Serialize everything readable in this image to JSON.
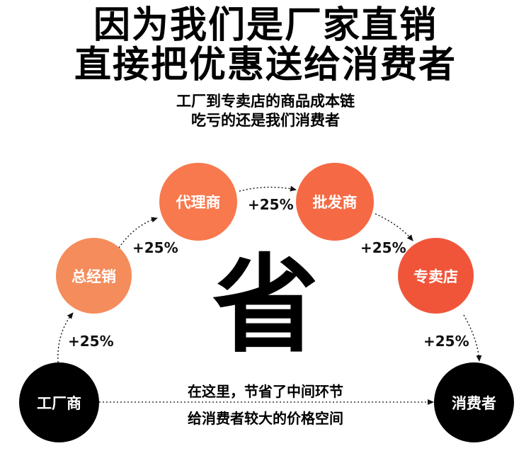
{
  "title": {
    "line1": "因为我们是厂家直销",
    "line2": "直接把优惠送给消费者"
  },
  "subtitle": {
    "line1": "工厂到专卖店的商品成本链",
    "line2": "吃亏的还是我们消费者"
  },
  "nodes": {
    "factory": "工厂商",
    "distributor": "总经销",
    "agent": "代理商",
    "wholesaler": "批发商",
    "store": "专卖店",
    "consumer": "消费者"
  },
  "markup": {
    "factory_to_distributor": "+25%",
    "distributor_to_agent": "+25%",
    "agent_to_wholesaler": "+25%",
    "wholesaler_to_store": "+25%",
    "store_to_consumer": "+25%"
  },
  "center_char": "省",
  "note": {
    "line1": "在这里，节省了中间环节",
    "line2": "给消费者较大的价格空间"
  },
  "colors": {
    "distributor": "#f58c5c",
    "agent": "#f7794d",
    "wholesaler": "#f56a45",
    "store": "#f0553a",
    "factory": "#000000",
    "consumer": "#000000"
  }
}
